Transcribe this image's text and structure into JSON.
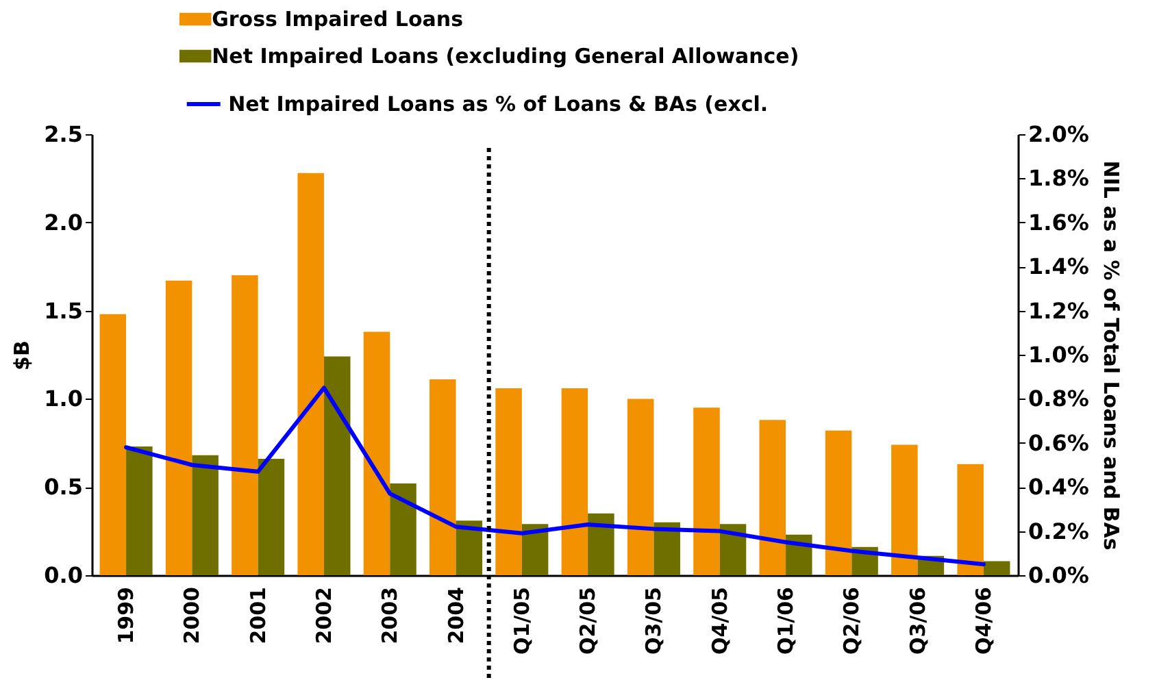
{
  "chart_data": {
    "type": "bar",
    "categories": [
      "1999",
      "2000",
      "2001",
      "2002",
      "2003",
      "2004",
      "Q1/05",
      "Q2/05",
      "Q3/05",
      "Q4/05",
      "Q1/06",
      "Q2/06",
      "Q3/06",
      "Q4/06"
    ],
    "series": [
      {
        "name": "Gross Impaired Loans",
        "color": "#f29200",
        "values": [
          1.48,
          1.67,
          1.7,
          2.28,
          1.38,
          1.11,
          1.06,
          1.06,
          1.0,
          0.95,
          0.88,
          0.82,
          0.74,
          0.63
        ]
      },
      {
        "name": "Net Impaired Loans (excluding General Allowance)",
        "color": "#6f6f00",
        "values": [
          0.73,
          0.68,
          0.66,
          1.24,
          0.52,
          0.31,
          0.29,
          0.35,
          0.3,
          0.29,
          0.23,
          0.16,
          0.11,
          0.08
        ]
      },
      {
        "name": "Net Impaired Loans as % of Loans & BAs (excl.",
        "type": "line",
        "axis": "y2",
        "color": "#0000ff",
        "values": [
          0.58,
          0.5,
          0.47,
          0.85,
          0.37,
          0.22,
          0.19,
          0.23,
          0.21,
          0.2,
          0.15,
          0.11,
          0.08,
          0.05
        ]
      }
    ],
    "ylabel": "$B",
    "y2label": "NIL as a % of Total Loans and BAs",
    "ylim": [
      0,
      2.5
    ],
    "yticks": [
      {
        "value": 0,
        "label": "0.0"
      },
      0.5,
      {
        "value": 1,
        "label": "1.0"
      },
      1.5,
      {
        "value": 2,
        "label": "2.0"
      },
      2.5
    ],
    "y2lim": [
      0,
      2.0
    ],
    "y2ticks": [
      {
        "value": 0,
        "label": "0.0%"
      },
      {
        "value": 0.2,
        "label": "0.2%"
      },
      {
        "value": 0.4,
        "label": "0.4%"
      },
      {
        "value": 0.6,
        "label": "0.6%"
      },
      {
        "value": 0.8,
        "label": "0.8%"
      },
      {
        "value": 1.0,
        "label": "1.0%"
      },
      {
        "value": 1.2,
        "label": "1.2%"
      },
      {
        "value": 1.4,
        "label": "1.4%"
      },
      {
        "value": 1.6,
        "label": "1.6%"
      },
      {
        "value": 1.8,
        "label": "1.8%"
      },
      {
        "value": 2.0,
        "label": "2.0%"
      }
    ],
    "legend": "top",
    "grid": false,
    "marker": "none",
    "line_style": "solid"
  }
}
